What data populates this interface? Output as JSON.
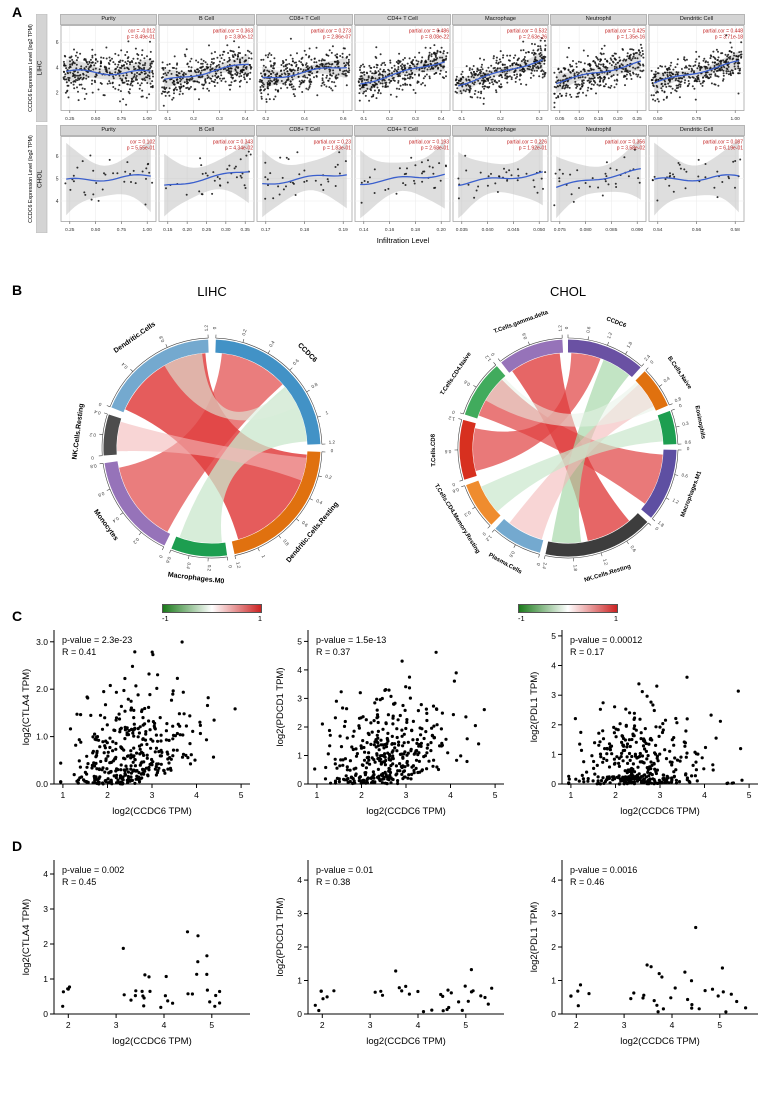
{
  "figure": {
    "panel_labels": {
      "a": "A",
      "b": "B",
      "c": "C",
      "d": "D"
    }
  },
  "chart_data": {
    "panel_a": {
      "type": "scatter-grid",
      "ylabel": "CCDC6 Expression Level (log2 TPM)",
      "xlabel": "Infiltration Level",
      "annotation_color": "#c22222",
      "rows": [
        {
          "cancer": "LIHC",
          "n_points": 370,
          "ylim": [
            0.8,
            7.2
          ],
          "yticks": {
            "values": [
              2,
              4,
              6
            ],
            "labels": [
              "2",
              "4",
              "6"
            ]
          },
          "facets": [
            {
              "title": "Purity",
              "cor": -0.012,
              "lines": [
                "cor = -0.012",
                "p = 8.49e-01"
              ],
              "xticks": [
                "0.25",
                "0.50",
                "0.75",
                "1.00"
              ]
            },
            {
              "title": "B Cell",
              "cor": 0.363,
              "lines": [
                "partial.cor = 0.363",
                "p = 3.80e-12"
              ],
              "xticks": [
                "0.1",
                "0.2",
                "0.3",
                "0.4"
              ]
            },
            {
              "title": "CD8+ T Cell",
              "cor": 0.273,
              "lines": [
                "partial.cor = 0.273",
                "p = 2.86e-07"
              ],
              "xticks": [
                "0.2",
                "0.4",
                "0.6"
              ]
            },
            {
              "title": "CD4+ T Cell",
              "cor": 0.486,
              "lines": [
                "partial.cor = 0.486",
                "p = 8.08e-22"
              ],
              "xticks": [
                "0.1",
                "0.2",
                "0.3",
                "0.4"
              ]
            },
            {
              "title": "Macrophage",
              "cor": 0.532,
              "lines": [
                "partial.cor = 0.532",
                "p = 2.63e-26"
              ],
              "xticks": [
                "0.1",
                "0.2",
                "0.3"
              ]
            },
            {
              "title": "Neutrophil",
              "cor": 0.425,
              "lines": [
                "partial.cor = 0.425",
                "p = 1.35e-16"
              ],
              "xticks": [
                "0.05",
                "0.10",
                "0.15",
                "0.20",
                "0.25"
              ]
            },
            {
              "title": "Dendritic Cell",
              "cor": 0.448,
              "lines": [
                "partial.cor = 0.448",
                "p = 3.71e-18"
              ],
              "xticks": [
                "0.50",
                "0.75",
                "1.00"
              ]
            }
          ]
        },
        {
          "cancer": "CHOL",
          "n_points": 36,
          "ylim": [
            3.2,
            6.8
          ],
          "yticks": {
            "values": [
              4,
              5,
              6
            ],
            "labels": [
              "4",
              "5",
              "6"
            ]
          },
          "facets": [
            {
              "title": "Purity",
              "cor": 0.102,
              "lines": [
                "cor = 0.102",
                "p = 5.55e-01"
              ],
              "xticks": [
                "0.25",
                "0.50",
                "0.75",
                "1.00"
              ]
            },
            {
              "title": "B Cell",
              "cor": 0.343,
              "lines": [
                "partial.cor = 0.343",
                "p = 4.34e-02"
              ],
              "xticks": [
                "0.15",
                "0.20",
                "0.25",
                "0.30",
                "0.35"
              ]
            },
            {
              "title": "CD8+ T Cell",
              "cor": 0.23,
              "lines": [
                "partial.cor = 0.23",
                "p = 1.83e-01"
              ],
              "xticks": [
                "0.17",
                "0.18",
                "0.19"
              ]
            },
            {
              "title": "CD4+ T Cell",
              "cor": 0.193,
              "lines": [
                "partial.cor = 0.193",
                "p = 2.68e-01"
              ],
              "xticks": [
                "0.14",
                "0.16",
                "0.18",
                "0.20"
              ]
            },
            {
              "title": "Macrophage",
              "cor": 0.226,
              "lines": [
                "partial.cor = 0.226",
                "p = 1.92e-01"
              ],
              "xticks": [
                "0.035",
                "0.040",
                "0.045",
                "0.050"
              ]
            },
            {
              "title": "Neutrophil",
              "cor": 0.356,
              "lines": [
                "partial.cor = 0.356",
                "p = 3.58e-02"
              ],
              "xticks": [
                "0.075",
                "0.080",
                "0.085",
                "0.090"
              ]
            },
            {
              "title": "Dendritic Cell",
              "cor": 0.087,
              "lines": [
                "partial.cor = 0.087",
                "p = 6.19e-01"
              ],
              "xticks": [
                "0.54",
                "0.56",
                "0.58"
              ]
            }
          ]
        }
      ]
    },
    "panel_b": {
      "type": "chord",
      "legend": {
        "min_label": "-1",
        "max_label": "1",
        "gradient": [
          "#1a7a1a",
          "#ffffff",
          "#cc2222"
        ]
      },
      "charts": [
        {
          "title": "LIHC",
          "sectors": [
            {
              "name": "CCDC6",
              "color": "#4292c6",
              "start": 2,
              "end": 88,
              "ticks": [
                "0",
                "0.2",
                "0.4",
                "0.6",
                "0.8",
                "1",
                "1.2"
              ]
            },
            {
              "name": "Dendritic.Cells.Resting",
              "color": "#e0710f",
              "start": 92,
              "end": 168,
              "ticks": [
                "0",
                "0.2",
                "0.4",
                "0.6",
                "0.8",
                "1",
                "1.2"
              ]
            },
            {
              "name": "Macrophages.M0",
              "color": "#1d9e50",
              "start": 172,
              "end": 202,
              "ticks": [
                "0",
                "0.2",
                "0.4",
                "0.6"
              ]
            },
            {
              "name": "Monocytes",
              "color": "#9673b9",
              "start": 206,
              "end": 262,
              "ticks": [
                "0",
                "0.2",
                "0.4",
                "0.6",
                "0.8"
              ]
            },
            {
              "name": "NK.Cells.Resting",
              "color": "#4d4d4d",
              "start": 266,
              "end": 288,
              "ticks": [
                "0",
                "0.2",
                "0.4"
              ]
            },
            {
              "name": "Dendritic.Cells",
              "color": "#74a9cf",
              "start": 292,
              "end": 358,
              "ticks": [
                "0",
                "0.4",
                "0.8",
                "1.2"
              ]
            }
          ],
          "ribbons": [
            {
              "from": [
                294,
                356
              ],
              "to": [
                94,
                164
              ],
              "color": "#e04040",
              "opacity": 0.85
            },
            {
              "from": [
                6,
                48
              ],
              "to": [
                208,
                258
              ],
              "color": "#e04040",
              "opacity": 0.68
            },
            {
              "from": [
                50,
                86
              ],
              "to": [
                174,
                200
              ],
              "color": "#c9e7cc",
              "opacity": 0.75
            },
            {
              "from": [
                268,
                286
              ],
              "to": [
                96,
                110
              ],
              "color": "#f3b9b9",
              "opacity": 0.6
            },
            {
              "from": [
                52,
                64
              ],
              "to": [
                330,
                354
              ],
              "color": "#dcecdc",
              "opacity": 0.6
            }
          ]
        },
        {
          "title": "CHOL",
          "sectors": [
            {
              "name": "CCDC6",
              "color": "#6a51a3",
              "start": 0,
              "end": 42,
              "ticks": [
                "0",
                "0.6",
                "1.2",
                "1.8",
                "2.4"
              ]
            },
            {
              "name": "B.Cells.Naive",
              "color": "#e0710f",
              "start": 45,
              "end": 67,
              "ticks": [
                "0",
                "0.4",
                "0.8"
              ]
            },
            {
              "name": "Eosinophils",
              "color": "#1d9e50",
              "start": 70,
              "end": 88,
              "ticks": [
                "0",
                "0.3",
                "0.6"
              ]
            },
            {
              "name": "Macrophages.M1",
              "color": "#5e4fa2",
              "start": 91,
              "end": 130,
              "ticks": [
                "0",
                "0.6",
                "1.2",
                "1.8"
              ]
            },
            {
              "name": "NK.Cells.Resting",
              "color": "#3d3d3d",
              "start": 133,
              "end": 192,
              "ticks": [
                "0",
                "0.6",
                "1.2",
                "1.8",
                "2.4"
              ]
            },
            {
              "name": "Plasma.Cells",
              "color": "#74a9cf",
              "start": 195,
              "end": 222,
              "ticks": [
                "0",
                "0.6",
                "1.2"
              ]
            },
            {
              "name": "T.Cells.CD4.Memory.Resting",
              "color": "#ef8c2e",
              "start": 225,
              "end": 250,
              "ticks": [
                "0",
                "0.3",
                "0.6"
              ]
            },
            {
              "name": "T.Cells.CD8",
              "color": "#d7301f",
              "start": 253,
              "end": 285,
              "ticks": [
                "0",
                "0.6",
                "1.2"
              ]
            },
            {
              "name": "T.Cells.CD4.Naive",
              "color": "#41ab5d",
              "start": 288,
              "end": 319,
              "ticks": [
                "0",
                "0.6",
                "1.2"
              ]
            },
            {
              "name": "T.Cells.gamma.delta",
              "color": "#9673b9",
              "start": 322,
              "end": 357,
              "ticks": [
                "0",
                "0.6",
                "1.2"
              ]
            }
          ],
          "ribbons": [
            {
              "from": [
                324,
                355
              ],
              "to": [
                140,
                168
              ],
              "color": "#e04040",
              "opacity": 0.8
            },
            {
              "from": [
                2,
                20
              ],
              "to": [
                256,
                282
              ],
              "color": "#e04040",
              "opacity": 0.7
            },
            {
              "from": [
                94,
                126
              ],
              "to": [
                290,
                316
              ],
              "color": "#e04040",
              "opacity": 0.7
            },
            {
              "from": [
                22,
                40
              ],
              "to": [
                172,
                190
              ],
              "color": "#a8d8ab",
              "opacity": 0.7
            },
            {
              "from": [
                48,
                64
              ],
              "to": [
                196,
                218
              ],
              "color": "#f3b9b9",
              "opacity": 0.6
            },
            {
              "from": [
                72,
                86
              ],
              "to": [
                228,
                246
              ],
              "color": "#c9e7cc",
              "opacity": 0.7
            },
            {
              "from": [
                46,
                66
              ],
              "to": [
                300,
                318
              ],
              "color": "#e8f2e8",
              "opacity": 0.55
            }
          ]
        }
      ]
    },
    "panel_c": {
      "type": "scatter-row",
      "cancer": "LIHC",
      "xlabel": "log2(CCDC6 TPM)",
      "n_points": 380,
      "xlim": [
        0.8,
        5.2
      ],
      "xticks": {
        "values": [
          1,
          2,
          3,
          4,
          5
        ],
        "labels": [
          "1",
          "2",
          "3",
          "4",
          "5"
        ]
      },
      "plots": [
        {
          "ylabel": "log2(CTLA4 TPM)",
          "p_label": "p-value = 2.3e-23",
          "r_label": "R = 0.41",
          "r": 0.41,
          "ylim": [
            0,
            3.25
          ],
          "yticks": {
            "values": [
              0,
              1,
              2,
              3
            ],
            "labels": [
              "0.0",
              "1.0",
              "2.0",
              "3.0"
            ]
          }
        },
        {
          "ylabel": "log2(PDCD1 TPM)",
          "p_label": "p-value = 1.5e-13",
          "r_label": "R = 0.37",
          "r": 0.37,
          "ylim": [
            0,
            5.4
          ],
          "yticks": {
            "values": [
              0,
              1,
              2,
              3,
              4,
              5
            ],
            "labels": [
              "0",
              "1",
              "2",
              "3",
              "4",
              "5"
            ]
          }
        },
        {
          "ylabel": "log2(PDL1 TPM)",
          "p_label": "p-value = 0.00012",
          "r_label": "R = 0.17",
          "r": 0.17,
          "ylim": [
            0,
            5.2
          ],
          "yticks": {
            "values": [
              0,
              1,
              2,
              3,
              4,
              5
            ],
            "labels": [
              "0",
              "1",
              "2",
              "3",
              "4",
              "5"
            ]
          }
        }
      ]
    },
    "panel_d": {
      "type": "scatter-row",
      "cancer": "CHOL",
      "xlabel": "log2(CCDC6 TPM)",
      "n_points": 36,
      "xlim": [
        1.7,
        5.8
      ],
      "xticks": {
        "values": [
          2,
          3,
          4,
          5
        ],
        "labels": [
          "2",
          "3",
          "4",
          "5"
        ]
      },
      "plots": [
        {
          "ylabel": "log2(CTLA4 TPM)",
          "p_label": "p-value = 0.002",
          "r_label": "R = 0.45",
          "r": 0.45,
          "ylim": [
            0,
            4.4
          ],
          "yticks": {
            "values": [
              0,
              1,
              2,
              3,
              4
            ],
            "labels": [
              "0",
              "1",
              "2",
              "3",
              "4"
            ]
          }
        },
        {
          "ylabel": "log2(PDCD1 TPM)",
          "p_label": "p-value = 0.01",
          "r_label": "R = 0.38",
          "r": 0.38,
          "ylim": [
            0,
            4.6
          ],
          "yticks": {
            "values": [
              0,
              1,
              2,
              3,
              4
            ],
            "labels": [
              "0",
              "1",
              "2",
              "3",
              "4"
            ]
          }
        },
        {
          "ylabel": "log2(PDL1 TPM)",
          "p_label": "p-value = 0.0016",
          "r_label": "R = 0.46",
          "r": 0.46,
          "ylim": [
            0,
            4.6
          ],
          "yticks": {
            "values": [
              0,
              1,
              2,
              3,
              4
            ],
            "labels": [
              "0",
              "1",
              "2",
              "3",
              "4"
            ]
          }
        }
      ]
    }
  }
}
